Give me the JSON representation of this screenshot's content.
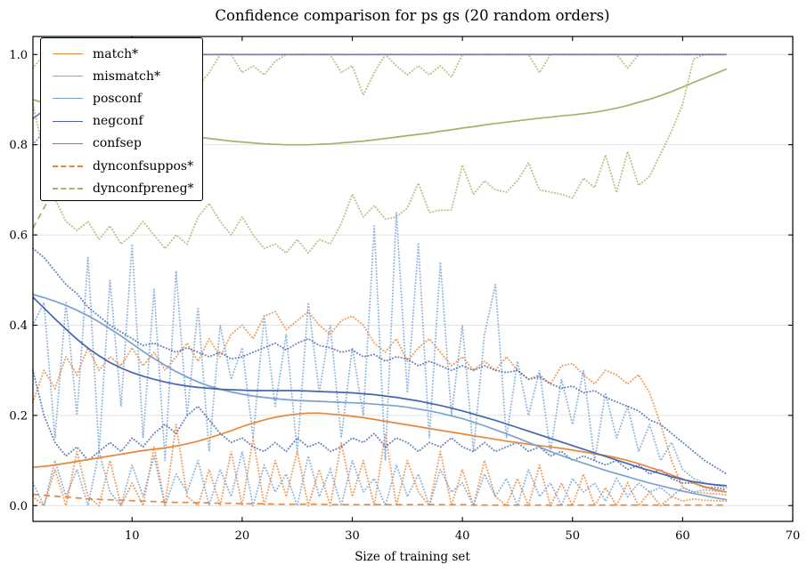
{
  "chart_data": {
    "type": "line",
    "title": "Confidence comparison for ps gs (20 random orders)",
    "xlabel": "Size of training set",
    "ylabel": "",
    "xlim": [
      1,
      70
    ],
    "ylim": [
      -0.035,
      1.04
    ],
    "xticks": [
      10,
      20,
      30,
      40,
      50,
      60,
      70
    ],
    "yticks": [
      0.0,
      0.2,
      0.4,
      0.6,
      0.8,
      1.0
    ],
    "ytick_labels": [
      "0.0",
      "0.2",
      "0.4",
      "0.6",
      "0.8",
      "1.0"
    ],
    "grid": "horizontal",
    "legend_position": "upper-left",
    "x_start": 1,
    "x_step": 1,
    "colors": {
      "orange": "#e8873b",
      "olive": "#a6b16c",
      "lightblue": "#79a2d2",
      "blue": "#4466b0",
      "purple": "#8375bd",
      "grid": "#e2e2e2",
      "spine": "#000000"
    },
    "legend": [
      {
        "label": "match*",
        "color": "orange",
        "style": "solid"
      },
      {
        "label": "mismatch*",
        "color": "olive",
        "style": "solid"
      },
      {
        "label": "posconf",
        "color": "lightblue",
        "style": "solid"
      },
      {
        "label": "negconf",
        "color": "blue",
        "style": "solid"
      },
      {
        "label": "confsep",
        "color": "purple",
        "style": "solid"
      },
      {
        "label": "dynconfsuppos*",
        "color": "orange",
        "style": "dashed"
      },
      {
        "label": "dynconfpreneg*",
        "color": "olive",
        "style": "dashed"
      }
    ],
    "series": [
      {
        "name": "match-envelope-upper",
        "color": "orange",
        "style": "dotted",
        "values": [
          0.23,
          0.3,
          0.26,
          0.33,
          0.29,
          0.35,
          0.3,
          0.33,
          0.31,
          0.35,
          0.31,
          0.34,
          0.3,
          0.33,
          0.36,
          0.32,
          0.37,
          0.33,
          0.38,
          0.4,
          0.37,
          0.42,
          0.43,
          0.39,
          0.41,
          0.43,
          0.4,
          0.38,
          0.41,
          0.42,
          0.4,
          0.36,
          0.34,
          0.37,
          0.32,
          0.35,
          0.37,
          0.34,
          0.31,
          0.33,
          0.3,
          0.32,
          0.3,
          0.33,
          0.3,
          0.28,
          0.29,
          0.27,
          0.31,
          0.315,
          0.29,
          0.27,
          0.3,
          0.29,
          0.27,
          0.29,
          0.25,
          0.18,
          0.1,
          0.04,
          0.03,
          0.028,
          0.026,
          0.024
        ]
      },
      {
        "name": "match-envelope-lower",
        "color": "orange",
        "style": "dotted",
        "values": [
          0.02,
          0.0,
          0.08,
          0.0,
          0.12,
          0.02,
          0.0,
          0.1,
          0.0,
          0.05,
          0.0,
          0.13,
          0.0,
          0.18,
          0.02,
          0.0,
          0.08,
          0.0,
          0.12,
          0.0,
          0.15,
          0.0,
          0.1,
          0.02,
          0.12,
          0.0,
          0.08,
          0.0,
          0.14,
          0.02,
          0.1,
          0.0,
          0.16,
          0.0,
          0.1,
          0.03,
          0.0,
          0.12,
          0.0,
          0.08,
          0.0,
          0.1,
          0.02,
          0.0,
          0.06,
          0.0,
          0.09,
          0.0,
          0.05,
          0.0,
          0.07,
          0.0,
          0.04,
          0.0,
          0.05,
          0.0,
          0.03,
          0.0,
          0.02,
          0.01,
          0.015,
          0.012,
          0.011,
          0.01
        ]
      },
      {
        "name": "posconf-envelope-upper",
        "color": "lightblue",
        "style": "dotted",
        "values": [
          0.4,
          0.45,
          0.15,
          0.45,
          0.2,
          0.55,
          0.12,
          0.5,
          0.22,
          0.58,
          0.15,
          0.48,
          0.1,
          0.52,
          0.2,
          0.44,
          0.12,
          0.4,
          0.28,
          0.35,
          0.15,
          0.42,
          0.22,
          0.38,
          0.12,
          0.45,
          0.25,
          0.4,
          0.15,
          0.35,
          0.2,
          0.62,
          0.1,
          0.65,
          0.25,
          0.58,
          0.15,
          0.54,
          0.2,
          0.4,
          0.12,
          0.38,
          0.49,
          0.15,
          0.32,
          0.2,
          0.3,
          0.12,
          0.28,
          0.18,
          0.3,
          0.1,
          0.25,
          0.15,
          0.22,
          0.12,
          0.18,
          0.1,
          0.14,
          0.08,
          0.06,
          0.05,
          0.045,
          0.04
        ]
      },
      {
        "name": "posconf-envelope-lower",
        "color": "lightblue",
        "style": "dotted",
        "values": [
          0.05,
          0.0,
          0.1,
          0.02,
          0.08,
          0.0,
          0.12,
          0.03,
          0.0,
          0.09,
          0.02,
          0.11,
          0.0,
          0.07,
          0.03,
          0.1,
          0.0,
          0.08,
          0.02,
          0.12,
          0.0,
          0.09,
          0.03,
          0.07,
          0.0,
          0.11,
          0.02,
          0.08,
          0.0,
          0.1,
          0.03,
          0.06,
          0.0,
          0.09,
          0.02,
          0.07,
          0.0,
          0.08,
          0.03,
          0.05,
          0.0,
          0.07,
          0.02,
          0.06,
          0.0,
          0.08,
          0.02,
          0.05,
          0.0,
          0.06,
          0.03,
          0.05,
          0.01,
          0.06,
          0.02,
          0.05,
          0.03,
          0.04,
          0.02,
          0.04,
          0.03,
          0.035,
          0.032,
          0.03
        ]
      },
      {
        "name": "negconf-envelope-upper",
        "color": "blue",
        "style": "dotted",
        "values": [
          0.57,
          0.55,
          0.52,
          0.49,
          0.47,
          0.44,
          0.42,
          0.4,
          0.385,
          0.37,
          0.355,
          0.36,
          0.35,
          0.34,
          0.35,
          0.34,
          0.33,
          0.34,
          0.325,
          0.33,
          0.34,
          0.35,
          0.36,
          0.345,
          0.36,
          0.37,
          0.355,
          0.35,
          0.34,
          0.345,
          0.33,
          0.335,
          0.32,
          0.33,
          0.325,
          0.31,
          0.32,
          0.31,
          0.3,
          0.31,
          0.3,
          0.31,
          0.3,
          0.295,
          0.3,
          0.28,
          0.285,
          0.27,
          0.26,
          0.265,
          0.25,
          0.255,
          0.24,
          0.23,
          0.22,
          0.21,
          0.19,
          0.18,
          0.16,
          0.14,
          0.12,
          0.1,
          0.085,
          0.07
        ]
      },
      {
        "name": "negconf-envelope-lower",
        "color": "blue",
        "style": "dotted",
        "values": [
          0.3,
          0.2,
          0.14,
          0.11,
          0.13,
          0.1,
          0.12,
          0.14,
          0.12,
          0.15,
          0.13,
          0.16,
          0.18,
          0.16,
          0.2,
          0.22,
          0.19,
          0.16,
          0.14,
          0.15,
          0.13,
          0.12,
          0.14,
          0.12,
          0.15,
          0.13,
          0.14,
          0.12,
          0.13,
          0.15,
          0.14,
          0.16,
          0.13,
          0.15,
          0.14,
          0.12,
          0.14,
          0.13,
          0.15,
          0.13,
          0.12,
          0.14,
          0.12,
          0.13,
          0.14,
          0.12,
          0.13,
          0.11,
          0.12,
          0.1,
          0.11,
          0.1,
          0.09,
          0.1,
          0.08,
          0.09,
          0.07,
          0.08,
          0.06,
          0.05,
          0.05,
          0.04,
          0.04,
          0.035
        ]
      },
      {
        "name": "mismatch-envelope-upper",
        "color": "olive",
        "style": "dotted",
        "values": [
          0.97,
          1,
          1,
          0.98,
          1,
          1,
          0.97,
          1,
          1,
          1,
          0.96,
          1,
          0.94,
          1,
          0.97,
          0.93,
          0.96,
          1,
          1,
          0.96,
          0.975,
          0.955,
          0.985,
          1,
          1,
          1,
          1,
          1,
          0.96,
          0.975,
          0.91,
          0.96,
          1,
          0.975,
          0.955,
          0.975,
          0.955,
          0.975,
          0.95,
          1,
          1,
          1,
          1,
          1,
          1,
          1,
          0.96,
          1,
          1,
          1,
          1,
          1,
          1,
          1,
          0.97,
          1,
          1,
          1,
          1,
          1,
          1,
          1,
          1,
          1
        ]
      },
      {
        "name": "mismatch-envelope-lower",
        "color": "olive",
        "style": "dotted",
        "values": [
          0.89,
          0.78,
          0.68,
          0.63,
          0.61,
          0.63,
          0.59,
          0.62,
          0.58,
          0.6,
          0.63,
          0.6,
          0.57,
          0.6,
          0.58,
          0.64,
          0.67,
          0.63,
          0.6,
          0.64,
          0.6,
          0.57,
          0.58,
          0.56,
          0.59,
          0.56,
          0.59,
          0.58,
          0.625,
          0.69,
          0.64,
          0.665,
          0.635,
          0.64,
          0.66,
          0.715,
          0.65,
          0.655,
          0.655,
          0.755,
          0.69,
          0.72,
          0.7,
          0.695,
          0.72,
          0.76,
          0.7,
          0.695,
          0.69,
          0.682,
          0.726,
          0.705,
          0.777,
          0.694,
          0.785,
          0.71,
          0.73,
          0.78,
          0.83,
          0.89,
          0.99,
          1,
          1,
          1
        ]
      },
      {
        "name": "dynconfpreneg",
        "color": "olive",
        "style": "dashed",
        "values": [
          0.615,
          0.66,
          0.703,
          0.744,
          0.783,
          0.82,
          0.854,
          0.885,
          0.912,
          0.935,
          0.954,
          0.97,
          0.982,
          0.991,
          0.996,
          0.999,
          1,
          1,
          1,
          1,
          1,
          1,
          1,
          1,
          1,
          1,
          1,
          1,
          1,
          1,
          1,
          1,
          1,
          1,
          1,
          1,
          1,
          1,
          1,
          1,
          1,
          1,
          1,
          1,
          1,
          1,
          1,
          1,
          1,
          1,
          1,
          1,
          1,
          1,
          1,
          1,
          1,
          1,
          1,
          1,
          1,
          1,
          1,
          1
        ]
      },
      {
        "name": "dynconfsuppos",
        "color": "orange",
        "style": "dashed",
        "values": [
          0.025,
          0.023,
          0.021,
          0.019,
          0.017,
          0.015,
          0.014,
          0.013,
          0.012,
          0.011,
          0.01,
          0.009,
          0.008,
          0.007,
          0.007,
          0.006,
          0.006,
          0.005,
          0.005,
          0.004,
          0.004,
          0.004,
          0.003,
          0.003,
          0.003,
          0.003,
          0.003,
          0.002,
          0.002,
          0.002,
          0.002,
          0.002,
          0.002,
          0.002,
          0.002,
          0.002,
          0.002,
          0.002,
          0.002,
          0.002,
          0.001,
          0.001,
          0.001,
          0.001,
          0.001,
          0.001,
          0.001,
          0.001,
          0.001,
          0.001,
          0.001,
          0.001,
          0.001,
          0.001,
          0.001,
          0.001,
          0.001,
          0.001,
          0.001,
          0.001,
          0.001,
          0.001,
          0.001,
          0.001
        ]
      },
      {
        "name": "match-mean",
        "color": "orange",
        "style": "solid",
        "values": [
          0.085,
          0.087,
          0.09,
          0.094,
          0.098,
          0.102,
          0.106,
          0.11,
          0.114,
          0.118,
          0.122,
          0.125,
          0.128,
          0.132,
          0.137,
          0.143,
          0.15,
          0.158,
          0.166,
          0.175,
          0.183,
          0.19,
          0.196,
          0.2,
          0.203,
          0.205,
          0.205,
          0.203,
          0.201,
          0.198,
          0.195,
          0.191,
          0.187,
          0.183,
          0.179,
          0.175,
          0.171,
          0.167,
          0.163,
          0.159,
          0.155,
          0.151,
          0.147,
          0.143,
          0.14,
          0.136,
          0.133,
          0.13,
          0.127,
          0.123,
          0.119,
          0.115,
          0.111,
          0.106,
          0.1,
          0.093,
          0.085,
          0.077,
          0.068,
          0.059,
          0.05,
          0.042,
          0.035,
          0.03
        ]
      },
      {
        "name": "mismatch-mean",
        "color": "olive",
        "style": "solid",
        "values": [
          0.9,
          0.893,
          0.886,
          0.879,
          0.872,
          0.866,
          0.86,
          0.854,
          0.848,
          0.843,
          0.838,
          0.833,
          0.829,
          0.825,
          0.821,
          0.817,
          0.814,
          0.811,
          0.808,
          0.806,
          0.804,
          0.802,
          0.801,
          0.8,
          0.8,
          0.8,
          0.801,
          0.802,
          0.804,
          0.806,
          0.808,
          0.811,
          0.814,
          0.817,
          0.82,
          0.823,
          0.826,
          0.83,
          0.833,
          0.837,
          0.84,
          0.844,
          0.847,
          0.85,
          0.853,
          0.856,
          0.859,
          0.861,
          0.864,
          0.866,
          0.869,
          0.872,
          0.876,
          0.881,
          0.887,
          0.894,
          0.901,
          0.909,
          0.918,
          0.928,
          0.938,
          0.948,
          0.958,
          0.968
        ]
      },
      {
        "name": "posconf-mean",
        "color": "lightblue",
        "style": "solid",
        "values": [
          0.468,
          0.461,
          0.453,
          0.444,
          0.433,
          0.421,
          0.407,
          0.392,
          0.376,
          0.359,
          0.342,
          0.326,
          0.311,
          0.297,
          0.285,
          0.274,
          0.265,
          0.258,
          0.252,
          0.247,
          0.243,
          0.24,
          0.237,
          0.235,
          0.233,
          0.232,
          0.231,
          0.23,
          0.229,
          0.228,
          0.227,
          0.225,
          0.223,
          0.221,
          0.218,
          0.214,
          0.21,
          0.205,
          0.199,
          0.193,
          0.185,
          0.177,
          0.168,
          0.159,
          0.15,
          0.14,
          0.13,
          0.12,
          0.111,
          0.102,
          0.094,
          0.086,
          0.078,
          0.071,
          0.064,
          0.057,
          0.05,
          0.044,
          0.038,
          0.032,
          0.027,
          0.022,
          0.017,
          0.013
        ]
      },
      {
        "name": "negconf-mean",
        "color": "blue",
        "style": "solid",
        "values": [
          0.462,
          0.438,
          0.414,
          0.391,
          0.369,
          0.349,
          0.332,
          0.317,
          0.305,
          0.295,
          0.287,
          0.28,
          0.274,
          0.269,
          0.265,
          0.262,
          0.26,
          0.258,
          0.257,
          0.256,
          0.255,
          0.255,
          0.255,
          0.255,
          0.255,
          0.254,
          0.253,
          0.252,
          0.251,
          0.25,
          0.248,
          0.246,
          0.243,
          0.24,
          0.236,
          0.232,
          0.227,
          0.222,
          0.216,
          0.21,
          0.203,
          0.196,
          0.189,
          0.181,
          0.173,
          0.165,
          0.157,
          0.149,
          0.141,
          0.133,
          0.125,
          0.117,
          0.109,
          0.101,
          0.093,
          0.085,
          0.078,
          0.071,
          0.064,
          0.058,
          0.053,
          0.049,
          0.046,
          0.044
        ]
      },
      {
        "name": "confsep-mean",
        "color": "purple",
        "style": "solid",
        "values": [
          0.858,
          0.876,
          0.894,
          0.911,
          0.927,
          0.942,
          0.955,
          0.966,
          0.975,
          0.983,
          0.989,
          0.994,
          0.997,
          0.999,
          1,
          1,
          1,
          1,
          1,
          1,
          1,
          1,
          1,
          1,
          1,
          1,
          1,
          1,
          1,
          1,
          1,
          1,
          1,
          1,
          1,
          1,
          1,
          1,
          1,
          1,
          1,
          1,
          1,
          1,
          1,
          1,
          1,
          1,
          1,
          1,
          1,
          1,
          1,
          1,
          1,
          1,
          1,
          1,
          1,
          1,
          1,
          1,
          1,
          1
        ]
      },
      {
        "name": "confsep-envelope-lower",
        "color": "purple",
        "style": "dotted",
        "values": [
          0.8,
          0.83,
          0.86,
          0.89,
          0.92,
          0.94,
          0.96,
          0.975,
          0.985,
          0.99,
          0.995,
          1,
          1,
          1,
          1,
          1,
          1,
          1,
          1,
          1,
          1,
          1,
          1,
          1,
          1,
          1,
          1,
          1,
          1,
          1,
          1,
          1,
          1,
          1,
          1,
          1,
          1,
          1,
          1,
          1,
          1,
          1,
          1,
          1,
          1,
          1,
          1,
          1,
          1,
          1,
          1,
          1,
          1,
          1,
          1,
          1,
          1,
          1,
          1,
          1,
          1,
          1,
          1,
          1
        ]
      }
    ]
  }
}
